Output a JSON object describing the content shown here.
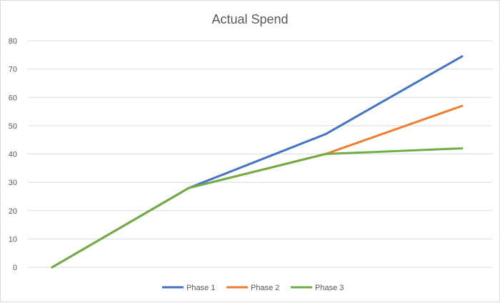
{
  "chart_data": {
    "type": "line",
    "title": "Actual Spend",
    "xlabel": "",
    "ylabel": "",
    "x": [
      1,
      2,
      3,
      4
    ],
    "ylim": [
      0,
      80
    ],
    "yticks": [
      0,
      10,
      20,
      30,
      40,
      50,
      60,
      70,
      80
    ],
    "grid": "horizontal",
    "legend": "bottom",
    "series": [
      {
        "name": "Phase 1",
        "color": "#4472C4",
        "values": [
          0,
          28,
          47,
          74.5
        ]
      },
      {
        "name": "Phase 2",
        "color": "#ED7D31",
        "values": [
          0,
          28,
          40,
          57
        ]
      },
      {
        "name": "Phase 3",
        "color": "#70AD47",
        "values": [
          0,
          28,
          40,
          42
        ]
      }
    ]
  }
}
